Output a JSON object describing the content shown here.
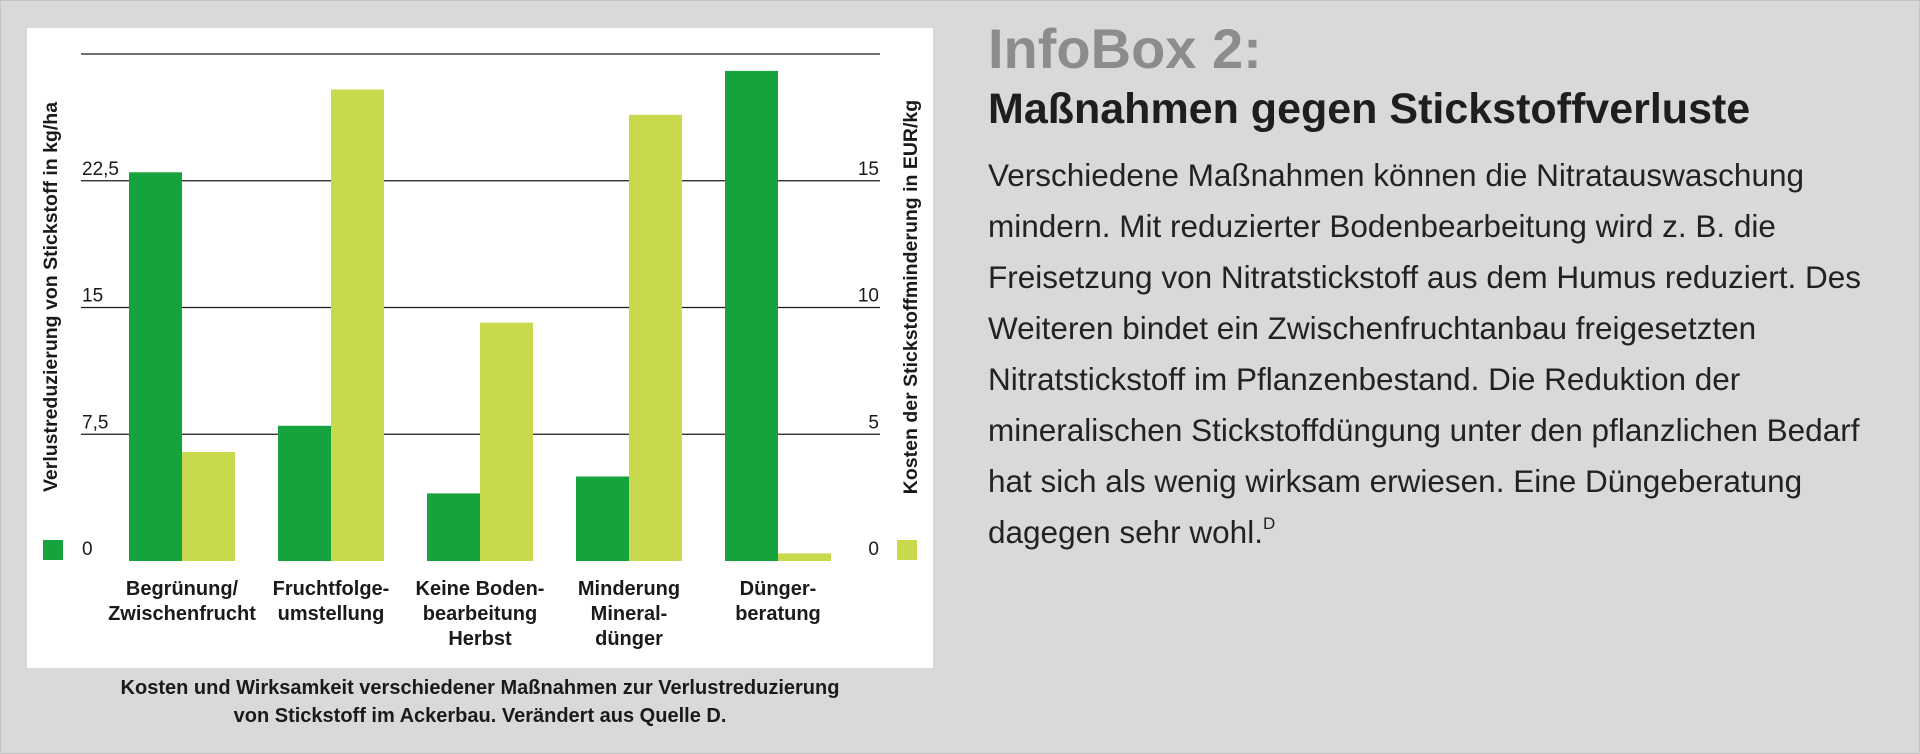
{
  "infobox": {
    "kicker": "InfoBox 2:",
    "title": "Maßnahmen gegen Stickstoffverluste",
    "body": "Verschiedene Maßnahmen können die Nitratauswaschung mindern. Mit reduzierter Bodenbearbeitung wird z. B. die Freisetzung von Nitratstickstoff aus dem Humus reduziert. Des Weiteren bindet ein Zwischenfruchtanbau freigesetzten Nitratstickstoff im Pflanzenbestand. Die Reduktion der mineralischen Stickstoffdüngung unter den pflanzlichen Bedarf hat sich als wenig wirksam erwiesen. Eine Dünge­beratung dagegen sehr wohl.",
    "footnote": "D"
  },
  "caption": {
    "line1": "Kosten und Wirksamkeit verschiedener Maßnahmen zur Verlustreduzierung",
    "line2": "von Stickstoff im Ackerbau. Verändert aus Quelle D."
  },
  "colors": {
    "background": "#d9d9d9",
    "dark_green": "#16a23c",
    "light_green": "#c8d94e",
    "kicker_gray": "#8c8c8c"
  },
  "chart_data": {
    "type": "bar",
    "categories": [
      [
        "Begrünung/",
        "Zwischenfrucht"
      ],
      [
        "Fruchtfolge-",
        "umstellung"
      ],
      [
        "Keine Boden-",
        "bearbeitung",
        "Herbst"
      ],
      [
        "Minderung",
        "Mineral-",
        "dünger"
      ],
      [
        "Dünger-",
        "beratung"
      ]
    ],
    "series": [
      {
        "axis": "left",
        "color": "#16a23c",
        "values": [
          23.0,
          8.0,
          4.0,
          5.0,
          29.0
        ]
      },
      {
        "axis": "right",
        "color": "#c8d94e",
        "values": [
          4.3,
          18.6,
          9.4,
          17.6,
          0.3
        ]
      }
    ],
    "ylabel_left": "Verlustreduzierung von Stickstoff in kg/ha",
    "ylabel_right": "Kosten der Stickstoffminderung in EUR/kg",
    "ylim_left": [
      0,
      30
    ],
    "ylim_right": [
      0,
      20
    ],
    "yticks_left": [
      "0",
      "7,5",
      "15",
      "22,5"
    ],
    "yticks_left_values": [
      0,
      7.5,
      15,
      22.5
    ],
    "yticks_right": [
      "0",
      "5",
      "10",
      "15"
    ],
    "yticks_right_values": [
      0,
      5,
      10,
      15
    ],
    "grid": true
  }
}
